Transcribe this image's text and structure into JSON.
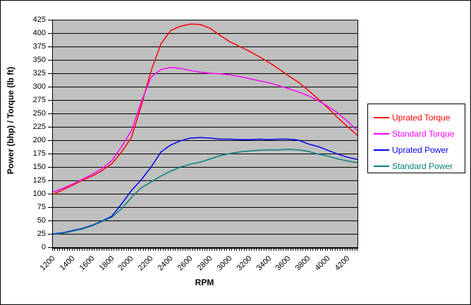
{
  "chart": {
    "y_axis": {
      "title": "Power (bhp) / Torque (lb ft)",
      "tick_labels": [
        "425",
        "400",
        "375",
        "350",
        "325",
        "300",
        "275",
        "250",
        "225",
        "200",
        "175",
        "150",
        "125",
        "100",
        "75",
        "50",
        "25",
        "0"
      ]
    },
    "x_axis": {
      "title": "RPM",
      "tick_labels": [
        "1200",
        "1400",
        "1600",
        "1800",
        "2000",
        "2200",
        "2400",
        "2600",
        "2800",
        "3000",
        "3200",
        "3400",
        "3600",
        "3800",
        "4000",
        "4200"
      ]
    },
    "legend": {
      "items": [
        {
          "label": "Uprated Torque",
          "color": "#FF0000"
        },
        {
          "label": "Standard Torque",
          "color": "#FF00FF"
        },
        {
          "label": "Uprated Power",
          "color": "#0000EE"
        },
        {
          "label": "Standard Power",
          "color": "#008080"
        }
      ]
    },
    "colors": {
      "plot_background": "#C0C0C0",
      "gridline": "#000000",
      "background": "#FFFFFF",
      "border": "#000000"
    }
  },
  "chart_data": {
    "type": "line",
    "title": "",
    "xlabel": "RPM",
    "ylabel": "Power (bhp) / Torque (lb ft)",
    "xlim": [
      1200,
      4300
    ],
    "ylim": [
      0,
      425
    ],
    "x_tick_step": 200,
    "x_minor_tick_step": 25,
    "y_tick_step": 25,
    "grid": "horizontal",
    "legend_position": "right",
    "x": [
      1200,
      1300,
      1400,
      1500,
      1600,
      1700,
      1800,
      1900,
      2000,
      2100,
      2200,
      2300,
      2400,
      2500,
      2600,
      2700,
      2800,
      2900,
      3000,
      3100,
      3200,
      3300,
      3400,
      3500,
      3600,
      3700,
      3800,
      3900,
      4000,
      4100,
      4200,
      4300
    ],
    "series": [
      {
        "name": "Uprated Torque",
        "color": "#FF0000",
        "values": [
          99,
          107,
          116,
          125,
          133,
          143,
          156,
          178,
          205,
          265,
          330,
          380,
          405,
          413,
          417,
          416,
          409,
          396,
          384,
          375,
          366,
          356,
          345,
          333,
          320,
          308,
          293,
          277,
          260,
          242,
          225,
          209
        ]
      },
      {
        "name": "Standard Torque",
        "color": "#FF00FF",
        "values": [
          103,
          110,
          118,
          127,
          136,
          147,
          162,
          188,
          218,
          272,
          318,
          332,
          336,
          334,
          330,
          327,
          325,
          324,
          322,
          319,
          315,
          311,
          307,
          302,
          296,
          290,
          283,
          274,
          263,
          251,
          235,
          218
        ]
      },
      {
        "name": "Uprated Power",
        "color": "#0000EE",
        "values": [
          25,
          27,
          31,
          35,
          41,
          49,
          58,
          81,
          106,
          126,
          150,
          178,
          191,
          199,
          204,
          205,
          204,
          202,
          202,
          201,
          201,
          202,
          201,
          202,
          202,
          200,
          193,
          188,
          181,
          174,
          168,
          164
        ]
      },
      {
        "name": "Standard Power",
        "color": "#008080",
        "values": [
          24,
          26,
          30,
          34,
          40,
          48,
          56,
          72,
          93,
          111,
          122,
          133,
          142,
          150,
          155,
          159,
          165,
          171,
          175,
          178,
          180,
          181,
          182,
          182,
          183,
          182,
          179,
          174,
          170,
          165,
          161,
          158
        ]
      }
    ]
  }
}
